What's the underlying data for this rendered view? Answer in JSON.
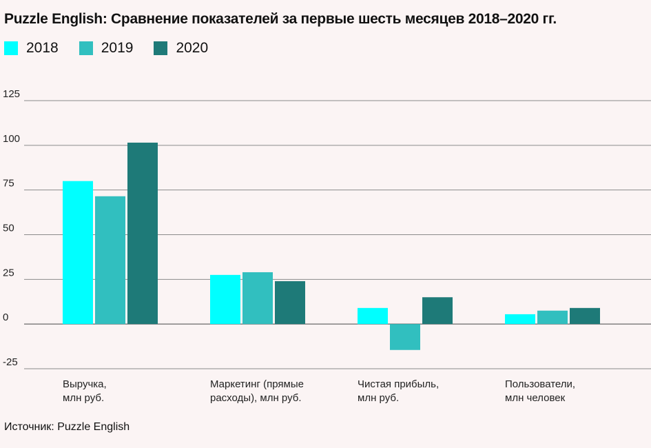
{
  "chart_data": {
    "type": "bar",
    "title": "Puzzle English: Сравнение показателей за первые шесть  месяцев 2018–2020 гг.",
    "categories": [
      [
        "Выручка,",
        "млн руб."
      ],
      [
        "Маркетинг (прямые",
        "расходы), млн руб."
      ],
      [
        "Чистая прибыль,",
        "млн руб."
      ],
      [
        "Пользователи,",
        "млн человек"
      ]
    ],
    "series": [
      {
        "name": "2018",
        "color": "#00ffff",
        "values": [
          80,
          27.5,
          9,
          5.5
        ]
      },
      {
        "name": "2019",
        "color": "#31bfbf",
        "values": [
          71.5,
          29,
          -14.5,
          7.5
        ]
      },
      {
        "name": "2020",
        "color": "#1e7a78",
        "values": [
          101.5,
          24,
          15,
          9
        ]
      }
    ],
    "yticks": [
      "125",
      "100",
      "75",
      "50",
      "25",
      "0",
      "-25"
    ],
    "ylim": [
      -25,
      125
    ],
    "xlabel": "",
    "ylabel": "",
    "grid": true,
    "legend_position": "top-left"
  },
  "source": "Источник: Puzzle English"
}
